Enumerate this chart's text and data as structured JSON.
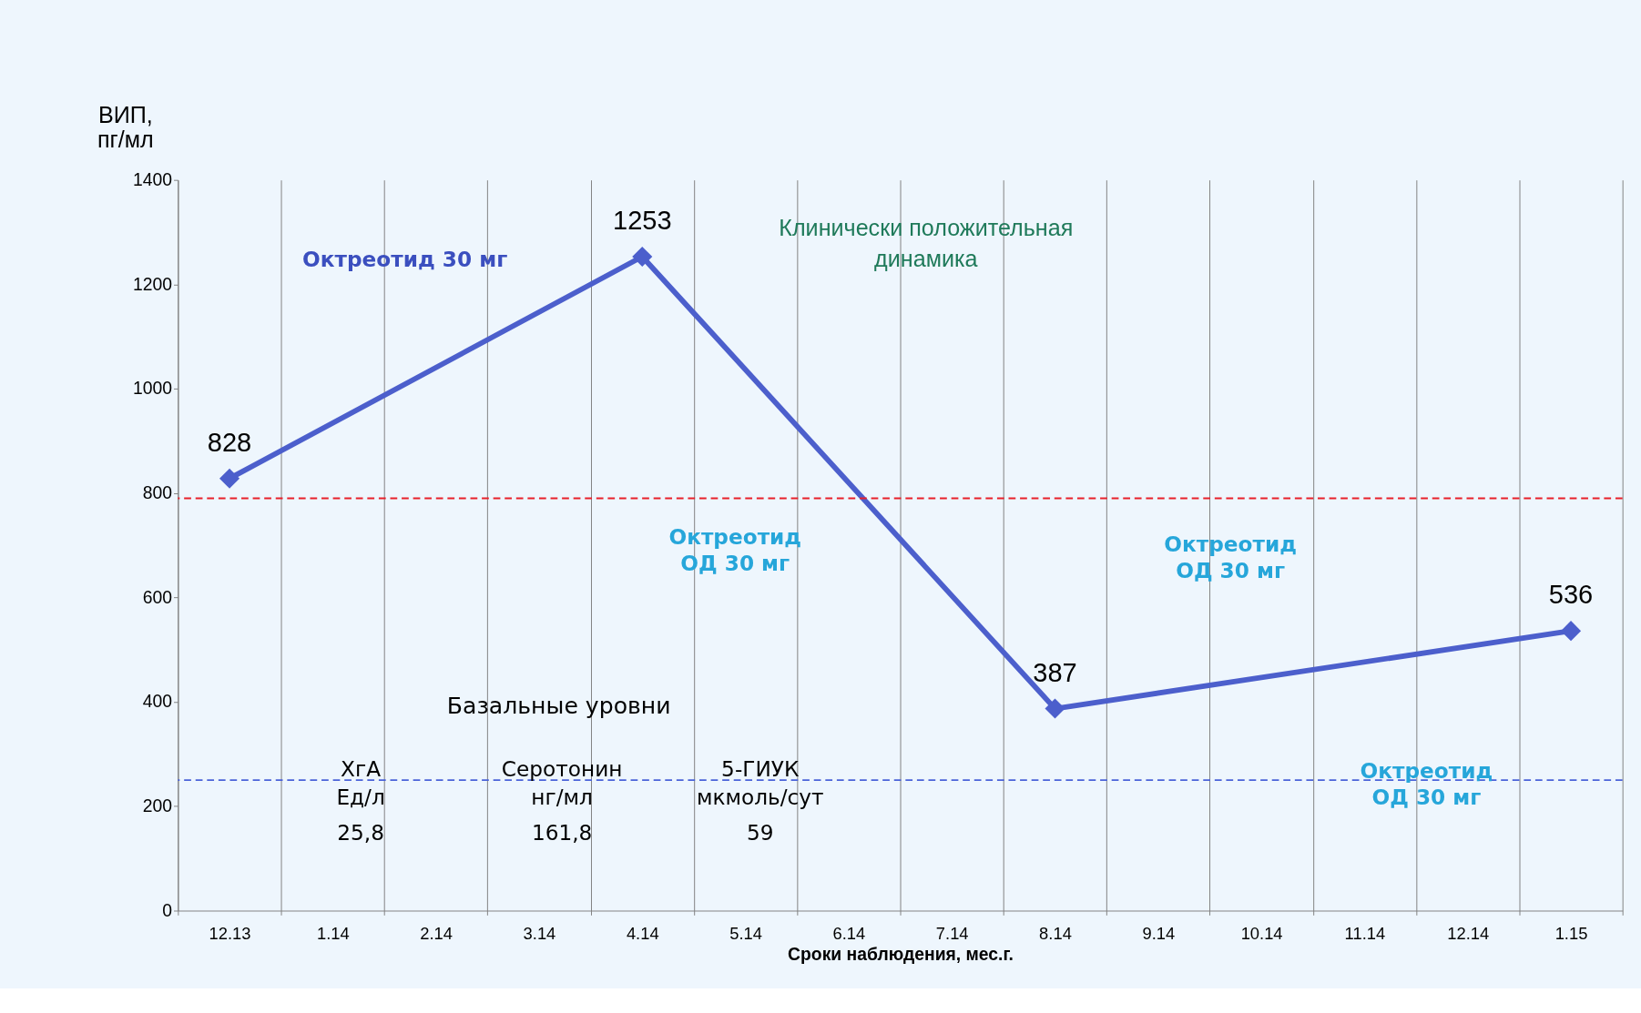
{
  "chart_data": {
    "type": "line",
    "xlabel": "Сроки наблюдения, мес.г.",
    "ylabel": "ВИП,\nпг/мл",
    "categories": [
      "12.13",
      "1.14",
      "2.14",
      "3.14",
      "4.14",
      "5.14",
      "6.14",
      "7.14",
      "8.14",
      "9.14",
      "10.14",
      "11.14",
      "12.14",
      "1.15"
    ],
    "series": [
      {
        "color": "#4c5fcc",
        "values": [
          828,
          null,
          null,
          null,
          1253,
          null,
          null,
          null,
          387,
          null,
          null,
          null,
          null,
          536
        ]
      }
    ],
    "ylim": [
      0,
      1400
    ],
    "yticks": [
      0,
      200,
      400,
      600,
      800,
      1000,
      1200,
      1400
    ],
    "ref_lines": [
      {
        "axis": "y",
        "value": 790,
        "color": "#e8202a",
        "line_style": "dashed"
      },
      {
        "axis": "y",
        "value": 250,
        "color": "#4a62d8",
        "line_style": "dashed"
      }
    ],
    "annotations": [
      "Клинически положительная\nдинамика",
      "Базальные уровни",
      "ХгА\nЕд/л",
      "Серотонин\nнг/мл",
      "5-ГИУК\nмкмоль/сут",
      "25,8",
      "161,8",
      "59",
      "Октреотид 30 мг",
      "Октреотид\nОД 30 мг",
      "Октреотид\nОД 30 мг",
      "Октреотид\nОД 30 мг"
    ],
    "data_labels": true,
    "grid": "x",
    "marker": "diamond",
    "line_style": "solid"
  }
}
